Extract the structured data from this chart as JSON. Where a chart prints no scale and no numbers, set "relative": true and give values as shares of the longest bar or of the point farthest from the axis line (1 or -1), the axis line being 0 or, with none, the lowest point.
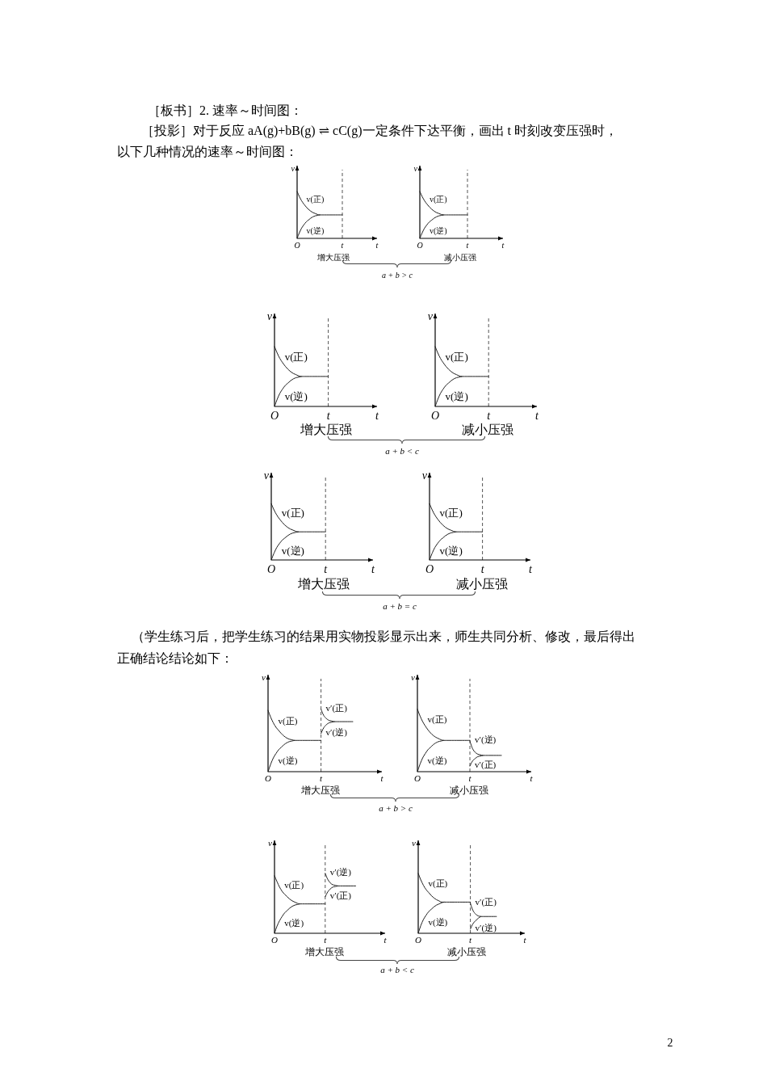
{
  "chart_data": [
    {
      "type": "line",
      "relative": true,
      "xlabel": "t",
      "ylabel": "v",
      "tick_labels": "x",
      "categories": [
        "O",
        null,
        null,
        null,
        null,
        null,
        null,
        null,
        null,
        null,
        null,
        null,
        null,
        null,
        null,
        null,
        null,
        null,
        null,
        null,
        "t"
      ],
      "ref_lines": [
        {
          "axis": "x",
          "value": "t",
          "line_style": "dashed",
          "color": "#555555"
        }
      ],
      "series": [
        {
          "name": "v(正)",
          "color": "#222222",
          "values": [
            1,
            0.89,
            0.8,
            0.73,
            0.67,
            0.62,
            0.58,
            0.55,
            0.53,
            0.51,
            0.5,
            0.5,
            0.5,
            0.5,
            0.5,
            0.5,
            0.5,
            0.5,
            0.5,
            0.5,
            0.5
          ]
        },
        {
          "name": "v(逆)",
          "color": "#222222",
          "values": [
            0,
            0.12,
            0.22,
            0.29,
            0.35,
            0.39,
            0.43,
            0.46,
            0.48,
            0.49,
            0.5,
            null,
            null,
            null,
            null,
            null,
            null,
            null,
            null,
            null,
            null
          ]
        }
      ],
      "annotations": [
        "增大压强",
        "a + b > c",
        "［板书］2. 速率～时间图：",
        "［投影］对于反应 aA(g)+bB(g) ⇌ cC(g)一定条件下达平衡，画出 t 时刻改变压强时，",
        "以下几种情况的速率～时间图："
      ]
    },
    {
      "type": "line",
      "relative": true,
      "xlabel": "t",
      "ylabel": "v",
      "tick_labels": "x",
      "categories": [
        "O",
        null,
        null,
        null,
        null,
        null,
        null,
        null,
        null,
        null,
        null,
        null,
        null,
        null,
        null,
        null,
        null,
        null,
        null,
        null,
        "t"
      ],
      "ref_lines": [
        {
          "axis": "x",
          "value": "t",
          "line_style": "dashed",
          "color": "#555555"
        }
      ],
      "series": [
        {
          "name": "v(正)",
          "color": "#222222",
          "values": [
            1,
            0.89,
            0.8,
            0.73,
            0.67,
            0.62,
            0.58,
            0.55,
            0.53,
            0.51,
            0.5,
            0.5,
            0.5,
            0.5,
            0.5,
            0.5,
            0.5,
            0.5,
            0.5,
            0.5,
            0.5
          ]
        },
        {
          "name": "v(逆)",
          "color": "#222222",
          "values": [
            0,
            0.12,
            0.22,
            0.29,
            0.35,
            0.39,
            0.43,
            0.46,
            0.48,
            0.49,
            0.5,
            null,
            null,
            null,
            null,
            null,
            null,
            null,
            null,
            null,
            null
          ]
        }
      ],
      "annotations": [
        "减小压强"
      ]
    },
    {
      "type": "line",
      "relative": true,
      "xlabel": "t",
      "ylabel": "v",
      "tick_labels": "x",
      "categories": [
        "O",
        null,
        null,
        null,
        null,
        null,
        null,
        null,
        null,
        null,
        null,
        null,
        null,
        null,
        null,
        null,
        null,
        null,
        null,
        null,
        "t"
      ],
      "ref_lines": [
        {
          "axis": "x",
          "value": "t",
          "line_style": "dashed",
          "color": "#555555"
        }
      ],
      "series": [
        {
          "name": "v(正)",
          "color": "#222222",
          "values": [
            1,
            0.89,
            0.8,
            0.73,
            0.67,
            0.62,
            0.58,
            0.55,
            0.53,
            0.51,
            0.5,
            0.5,
            0.5,
            0.5,
            0.5,
            0.5,
            0.5,
            0.5,
            0.5,
            0.5,
            0.5
          ]
        },
        {
          "name": "v(逆)",
          "color": "#222222",
          "values": [
            0,
            0.12,
            0.22,
            0.29,
            0.35,
            0.39,
            0.43,
            0.46,
            0.48,
            0.49,
            0.5,
            null,
            null,
            null,
            null,
            null,
            null,
            null,
            null,
            null,
            null
          ]
        }
      ],
      "annotations": [
        "增大压强",
        "a + b < c"
      ]
    },
    {
      "type": "line",
      "relative": true,
      "xlabel": "t",
      "ylabel": "v",
      "tick_labels": "x",
      "categories": [
        "O",
        null,
        null,
        null,
        null,
        null,
        null,
        null,
        null,
        null,
        null,
        null,
        null,
        null,
        null,
        null,
        null,
        null,
        null,
        null,
        "t"
      ],
      "ref_lines": [
        {
          "axis": "x",
          "value": "t",
          "line_style": "dashed",
          "color": "#555555"
        }
      ],
      "series": [
        {
          "name": "v(正)",
          "color": "#222222",
          "values": [
            1,
            0.89,
            0.8,
            0.73,
            0.67,
            0.62,
            0.58,
            0.55,
            0.53,
            0.51,
            0.5,
            0.5,
            0.5,
            0.5,
            0.5,
            0.5,
            0.5,
            0.5,
            0.5,
            0.5,
            0.5
          ]
        },
        {
          "name": "v(逆)",
          "color": "#222222",
          "values": [
            0,
            0.12,
            0.22,
            0.29,
            0.35,
            0.39,
            0.43,
            0.46,
            0.48,
            0.49,
            0.5,
            null,
            null,
            null,
            null,
            null,
            null,
            null,
            null,
            null,
            null
          ]
        }
      ],
      "annotations": [
        "减小压强"
      ]
    },
    {
      "type": "line",
      "relative": true,
      "xlabel": "t",
      "ylabel": "v",
      "tick_labels": "x",
      "categories": [
        "O",
        null,
        null,
        null,
        null,
        null,
        null,
        null,
        null,
        null,
        null,
        null,
        null,
        null,
        null,
        null,
        null,
        null,
        null,
        null,
        "t"
      ],
      "ref_lines": [
        {
          "axis": "x",
          "value": "t",
          "line_style": "dashed",
          "color": "#555555"
        }
      ],
      "series": [
        {
          "name": "v(正)",
          "color": "#222222",
          "values": [
            1,
            0.89,
            0.8,
            0.73,
            0.67,
            0.62,
            0.58,
            0.55,
            0.53,
            0.51,
            0.5,
            0.5,
            0.5,
            0.5,
            0.5,
            0.5,
            0.5,
            0.5,
            0.5,
            0.5,
            0.5
          ]
        },
        {
          "name": "v(逆)",
          "color": "#222222",
          "values": [
            0,
            0.12,
            0.22,
            0.29,
            0.35,
            0.39,
            0.43,
            0.46,
            0.48,
            0.49,
            0.5,
            null,
            null,
            null,
            null,
            null,
            null,
            null,
            null,
            null,
            null
          ]
        }
      ],
      "annotations": [
        "增大压强",
        "a + b = c"
      ]
    },
    {
      "type": "line",
      "relative": true,
      "xlabel": "t",
      "ylabel": "v",
      "tick_labels": "x",
      "categories": [
        "O",
        null,
        null,
        null,
        null,
        null,
        null,
        null,
        null,
        null,
        null,
        null,
        null,
        null,
        null,
        null,
        null,
        null,
        null,
        null,
        "t"
      ],
      "ref_lines": [
        {
          "axis": "x",
          "value": "t",
          "line_style": "dashed",
          "color": "#555555"
        }
      ],
      "series": [
        {
          "name": "v(正)",
          "color": "#222222",
          "values": [
            1,
            0.89,
            0.8,
            0.73,
            0.67,
            0.62,
            0.58,
            0.55,
            0.53,
            0.51,
            0.5,
            0.5,
            0.5,
            0.5,
            0.5,
            0.5,
            0.5,
            0.5,
            0.5,
            0.5,
            0.5
          ]
        },
        {
          "name": "v(逆)",
          "color": "#222222",
          "values": [
            0,
            0.12,
            0.22,
            0.29,
            0.35,
            0.39,
            0.43,
            0.46,
            0.48,
            0.49,
            0.5,
            null,
            null,
            null,
            null,
            null,
            null,
            null,
            null,
            null,
            null
          ]
        }
      ],
      "annotations": [
        "减小压强"
      ]
    },
    {
      "type": "line",
      "relative": true,
      "xlabel": "t",
      "ylabel": "v",
      "tick_labels": "x",
      "categories": [
        "O",
        null,
        null,
        null,
        null,
        null,
        null,
        null,
        null,
        null,
        null,
        null,
        null,
        null,
        null,
        null,
        null,
        null,
        null,
        null,
        "t",
        null,
        null,
        null,
        null,
        null,
        null,
        null,
        null,
        null,
        null,
        null,
        null
      ],
      "ref_lines": [
        {
          "axis": "x",
          "value": "t",
          "line_style": "dashed",
          "color": "#555555"
        }
      ],
      "series": [
        {
          "name": "v(正)",
          "color": "#222222",
          "values": [
            0.98,
            0.87,
            0.78,
            0.71,
            0.66,
            0.61,
            0.57,
            0.54,
            0.52,
            0.51,
            0.5,
            0.5,
            0.5,
            0.5,
            0.5,
            0.5,
            0.5,
            0.5,
            0.5,
            0.5,
            0.5,
            null,
            null,
            null,
            null,
            null,
            null,
            null,
            null,
            null,
            null,
            null,
            null
          ]
        },
        {
          "name": "v(逆)",
          "color": "#222222",
          "values": [
            0,
            0.12,
            0.22,
            0.29,
            0.35,
            0.39,
            0.43,
            0.46,
            0.48,
            0.49,
            0.5,
            null,
            null,
            null,
            null,
            null,
            null,
            null,
            null,
            null,
            null,
            null,
            null,
            null,
            null,
            null,
            null,
            null,
            null,
            null,
            null,
            null,
            null
          ]
        },
        {
          "name": "v′(正)",
          "color": "#222222",
          "values": [
            null,
            null,
            null,
            null,
            null,
            null,
            null,
            null,
            null,
            null,
            null,
            null,
            null,
            null,
            null,
            null,
            null,
            null,
            null,
            null,
            1,
            0.9,
            0.85,
            0.82,
            0.81,
            0.8,
            0.8,
            0.8,
            0.8,
            0.8,
            0.8,
            0.8,
            0.8
          ]
        },
        {
          "name": "v′(逆)",
          "color": "#222222",
          "values": [
            null,
            null,
            null,
            null,
            null,
            null,
            null,
            null,
            null,
            null,
            null,
            null,
            null,
            null,
            null,
            null,
            null,
            null,
            null,
            null,
            0.61,
            0.7,
            0.75,
            0.78,
            0.79,
            0.8,
            null,
            null,
            null,
            null,
            null,
            null,
            null
          ]
        }
      ],
      "annotations": [
        "增大压强",
        "a + b > c",
        "（学生练习后，把学生练习的结果用实物投影显示出来，师生共同分析、修改，最后得出",
        "正确结论结论如下："
      ]
    },
    {
      "type": "line",
      "relative": true,
      "xlabel": "t",
      "ylabel": "v",
      "tick_labels": "x",
      "categories": [
        "O",
        null,
        null,
        null,
        null,
        null,
        null,
        null,
        null,
        null,
        null,
        null,
        null,
        null,
        null,
        null,
        null,
        null,
        null,
        null,
        "t",
        null,
        null,
        null,
        null,
        null,
        null,
        null,
        null,
        null,
        null,
        null,
        null
      ],
      "ref_lines": [
        {
          "axis": "x",
          "value": "t",
          "line_style": "dashed",
          "color": "#555555"
        }
      ],
      "series": [
        {
          "name": "v(正)",
          "color": "#222222",
          "values": [
            1,
            0.89,
            0.8,
            0.73,
            0.67,
            0.62,
            0.58,
            0.55,
            0.53,
            0.51,
            0.5,
            0.5,
            0.5,
            0.5,
            0.5,
            0.5,
            0.5,
            0.5,
            0.5,
            0.5,
            0.5,
            null,
            null,
            null,
            null,
            null,
            null,
            null,
            null,
            null,
            null,
            null,
            null
          ]
        },
        {
          "name": "v(逆)",
          "color": "#222222",
          "values": [
            0,
            0.12,
            0.22,
            0.29,
            0.35,
            0.39,
            0.43,
            0.46,
            0.48,
            0.49,
            0.5,
            null,
            null,
            null,
            null,
            null,
            null,
            null,
            null,
            null,
            null,
            null,
            null,
            null,
            null,
            null,
            null,
            null,
            null,
            null,
            null,
            null,
            null
          ]
        },
        {
          "name": "v′(逆)",
          "color": "#222222",
          "values": [
            null,
            null,
            null,
            null,
            null,
            null,
            null,
            null,
            null,
            null,
            null,
            null,
            null,
            null,
            null,
            null,
            null,
            null,
            null,
            null,
            0.49,
            0.37,
            0.31,
            0.28,
            0.27,
            0.26,
            0.26,
            0.26,
            0.26,
            0.26,
            0.26,
            0.26,
            0.26
          ]
        },
        {
          "name": "v′(正)",
          "color": "#222222",
          "values": [
            null,
            null,
            null,
            null,
            null,
            null,
            null,
            null,
            null,
            null,
            null,
            null,
            null,
            null,
            null,
            null,
            null,
            null,
            null,
            null,
            0.09,
            0.17,
            0.21,
            0.24,
            0.25,
            0.26,
            null,
            null,
            null,
            null,
            null,
            null,
            null
          ]
        }
      ],
      "annotations": [
        "减小压强"
      ]
    },
    {
      "type": "line",
      "relative": true,
      "xlabel": "t",
      "ylabel": "v",
      "tick_labels": "x",
      "categories": [
        "O",
        null,
        null,
        null,
        null,
        null,
        null,
        null,
        null,
        null,
        null,
        null,
        null,
        null,
        null,
        null,
        null,
        null,
        null,
        null,
        "t",
        null,
        null,
        null,
        null,
        null,
        null,
        null,
        null,
        null,
        null,
        null,
        null
      ],
      "ref_lines": [
        {
          "axis": "x",
          "value": "t",
          "line_style": "dashed",
          "color": "#555555"
        }
      ],
      "series": [
        {
          "name": "v(正)",
          "color": "#222222",
          "values": [
            0.96,
            0.86,
            0.77,
            0.7,
            0.65,
            0.61,
            0.57,
            0.54,
            0.52,
            0.5,
            0.49,
            0.49,
            0.49,
            0.49,
            0.49,
            0.49,
            0.49,
            0.49,
            0.49,
            0.49,
            0.49,
            null,
            null,
            null,
            null,
            null,
            null,
            null,
            null,
            null,
            null,
            null,
            null
          ]
        },
        {
          "name": "v(逆)",
          "color": "#222222",
          "values": [
            0,
            0.12,
            0.21,
            0.28,
            0.34,
            0.38,
            0.42,
            0.45,
            0.47,
            0.48,
            0.49,
            null,
            null,
            null,
            null,
            null,
            null,
            null,
            null,
            null,
            null,
            null,
            null,
            null,
            null,
            null,
            null,
            null,
            null,
            null,
            null,
            null,
            null
          ]
        },
        {
          "name": "v′(逆)",
          "color": "#222222",
          "values": [
            null,
            null,
            null,
            null,
            null,
            null,
            null,
            null,
            null,
            null,
            null,
            null,
            null,
            null,
            null,
            null,
            null,
            null,
            null,
            null,
            1,
            0.9,
            0.84,
            0.81,
            0.8,
            0.79,
            0.79,
            0.79,
            0.79,
            0.79,
            0.79,
            0.79,
            0.79
          ]
        },
        {
          "name": "v′(正)",
          "color": "#222222",
          "values": [
            null,
            null,
            null,
            null,
            null,
            null,
            null,
            null,
            null,
            null,
            null,
            null,
            null,
            null,
            null,
            null,
            null,
            null,
            null,
            null,
            0.61,
            0.69,
            0.74,
            0.77,
            0.78,
            0.79,
            null,
            null,
            null,
            null,
            null,
            null,
            null
          ]
        }
      ],
      "annotations": [
        "增大压强",
        "a + b < c"
      ]
    },
    {
      "type": "line",
      "relative": true,
      "xlabel": "t",
      "ylabel": "v",
      "tick_labels": "x",
      "categories": [
        "O",
        null,
        null,
        null,
        null,
        null,
        null,
        null,
        null,
        null,
        null,
        null,
        null,
        null,
        null,
        null,
        null,
        null,
        null,
        null,
        "t",
        null,
        null,
        null,
        null,
        null,
        null,
        null,
        null,
        null,
        null
      ],
      "ref_lines": [
        {
          "axis": "x",
          "value": "t",
          "line_style": "dashed",
          "color": "#555555"
        }
      ],
      "series": [
        {
          "name": "v(正)",
          "color": "#222222",
          "values": [
            1,
            0.89,
            0.8,
            0.73,
            0.68,
            0.63,
            0.59,
            0.56,
            0.54,
            0.52,
            0.52,
            0.52,
            0.52,
            0.52,
            0.52,
            0.52,
            0.52,
            0.52,
            0.52,
            0.52,
            0.52,
            null,
            null,
            null,
            null,
            null,
            null,
            null,
            null,
            null,
            null
          ]
        },
        {
          "name": "v(逆)",
          "color": "#222222",
          "values": [
            0,
            0.13,
            0.23,
            0.3,
            0.36,
            0.4,
            0.44,
            0.47,
            0.49,
            0.51,
            0.52,
            null,
            null,
            null,
            null,
            null,
            null,
            null,
            null,
            null,
            null,
            null,
            null,
            null,
            null,
            null,
            null,
            null,
            null,
            null,
            null
          ]
        },
        {
          "name": "v′(正)",
          "color": "#222222",
          "values": [
            null,
            null,
            null,
            null,
            null,
            null,
            null,
            null,
            null,
            null,
            null,
            null,
            null,
            null,
            null,
            null,
            null,
            null,
            null,
            null,
            0.5,
            0.38,
            0.32,
            0.29,
            0.28,
            0.28,
            0.28,
            0.28,
            0.28,
            0.28,
            0.28
          ]
        },
        {
          "name": "v′(逆)",
          "color": "#222222",
          "values": [
            null,
            null,
            null,
            null,
            null,
            null,
            null,
            null,
            null,
            null,
            null,
            null,
            null,
            null,
            null,
            null,
            null,
            null,
            null,
            null,
            0.07,
            0.16,
            0.21,
            0.25,
            0.28,
            null,
            null,
            null,
            null,
            null,
            null
          ]
        }
      ],
      "annotations": [
        "减小压强",
        "2"
      ]
    }
  ]
}
